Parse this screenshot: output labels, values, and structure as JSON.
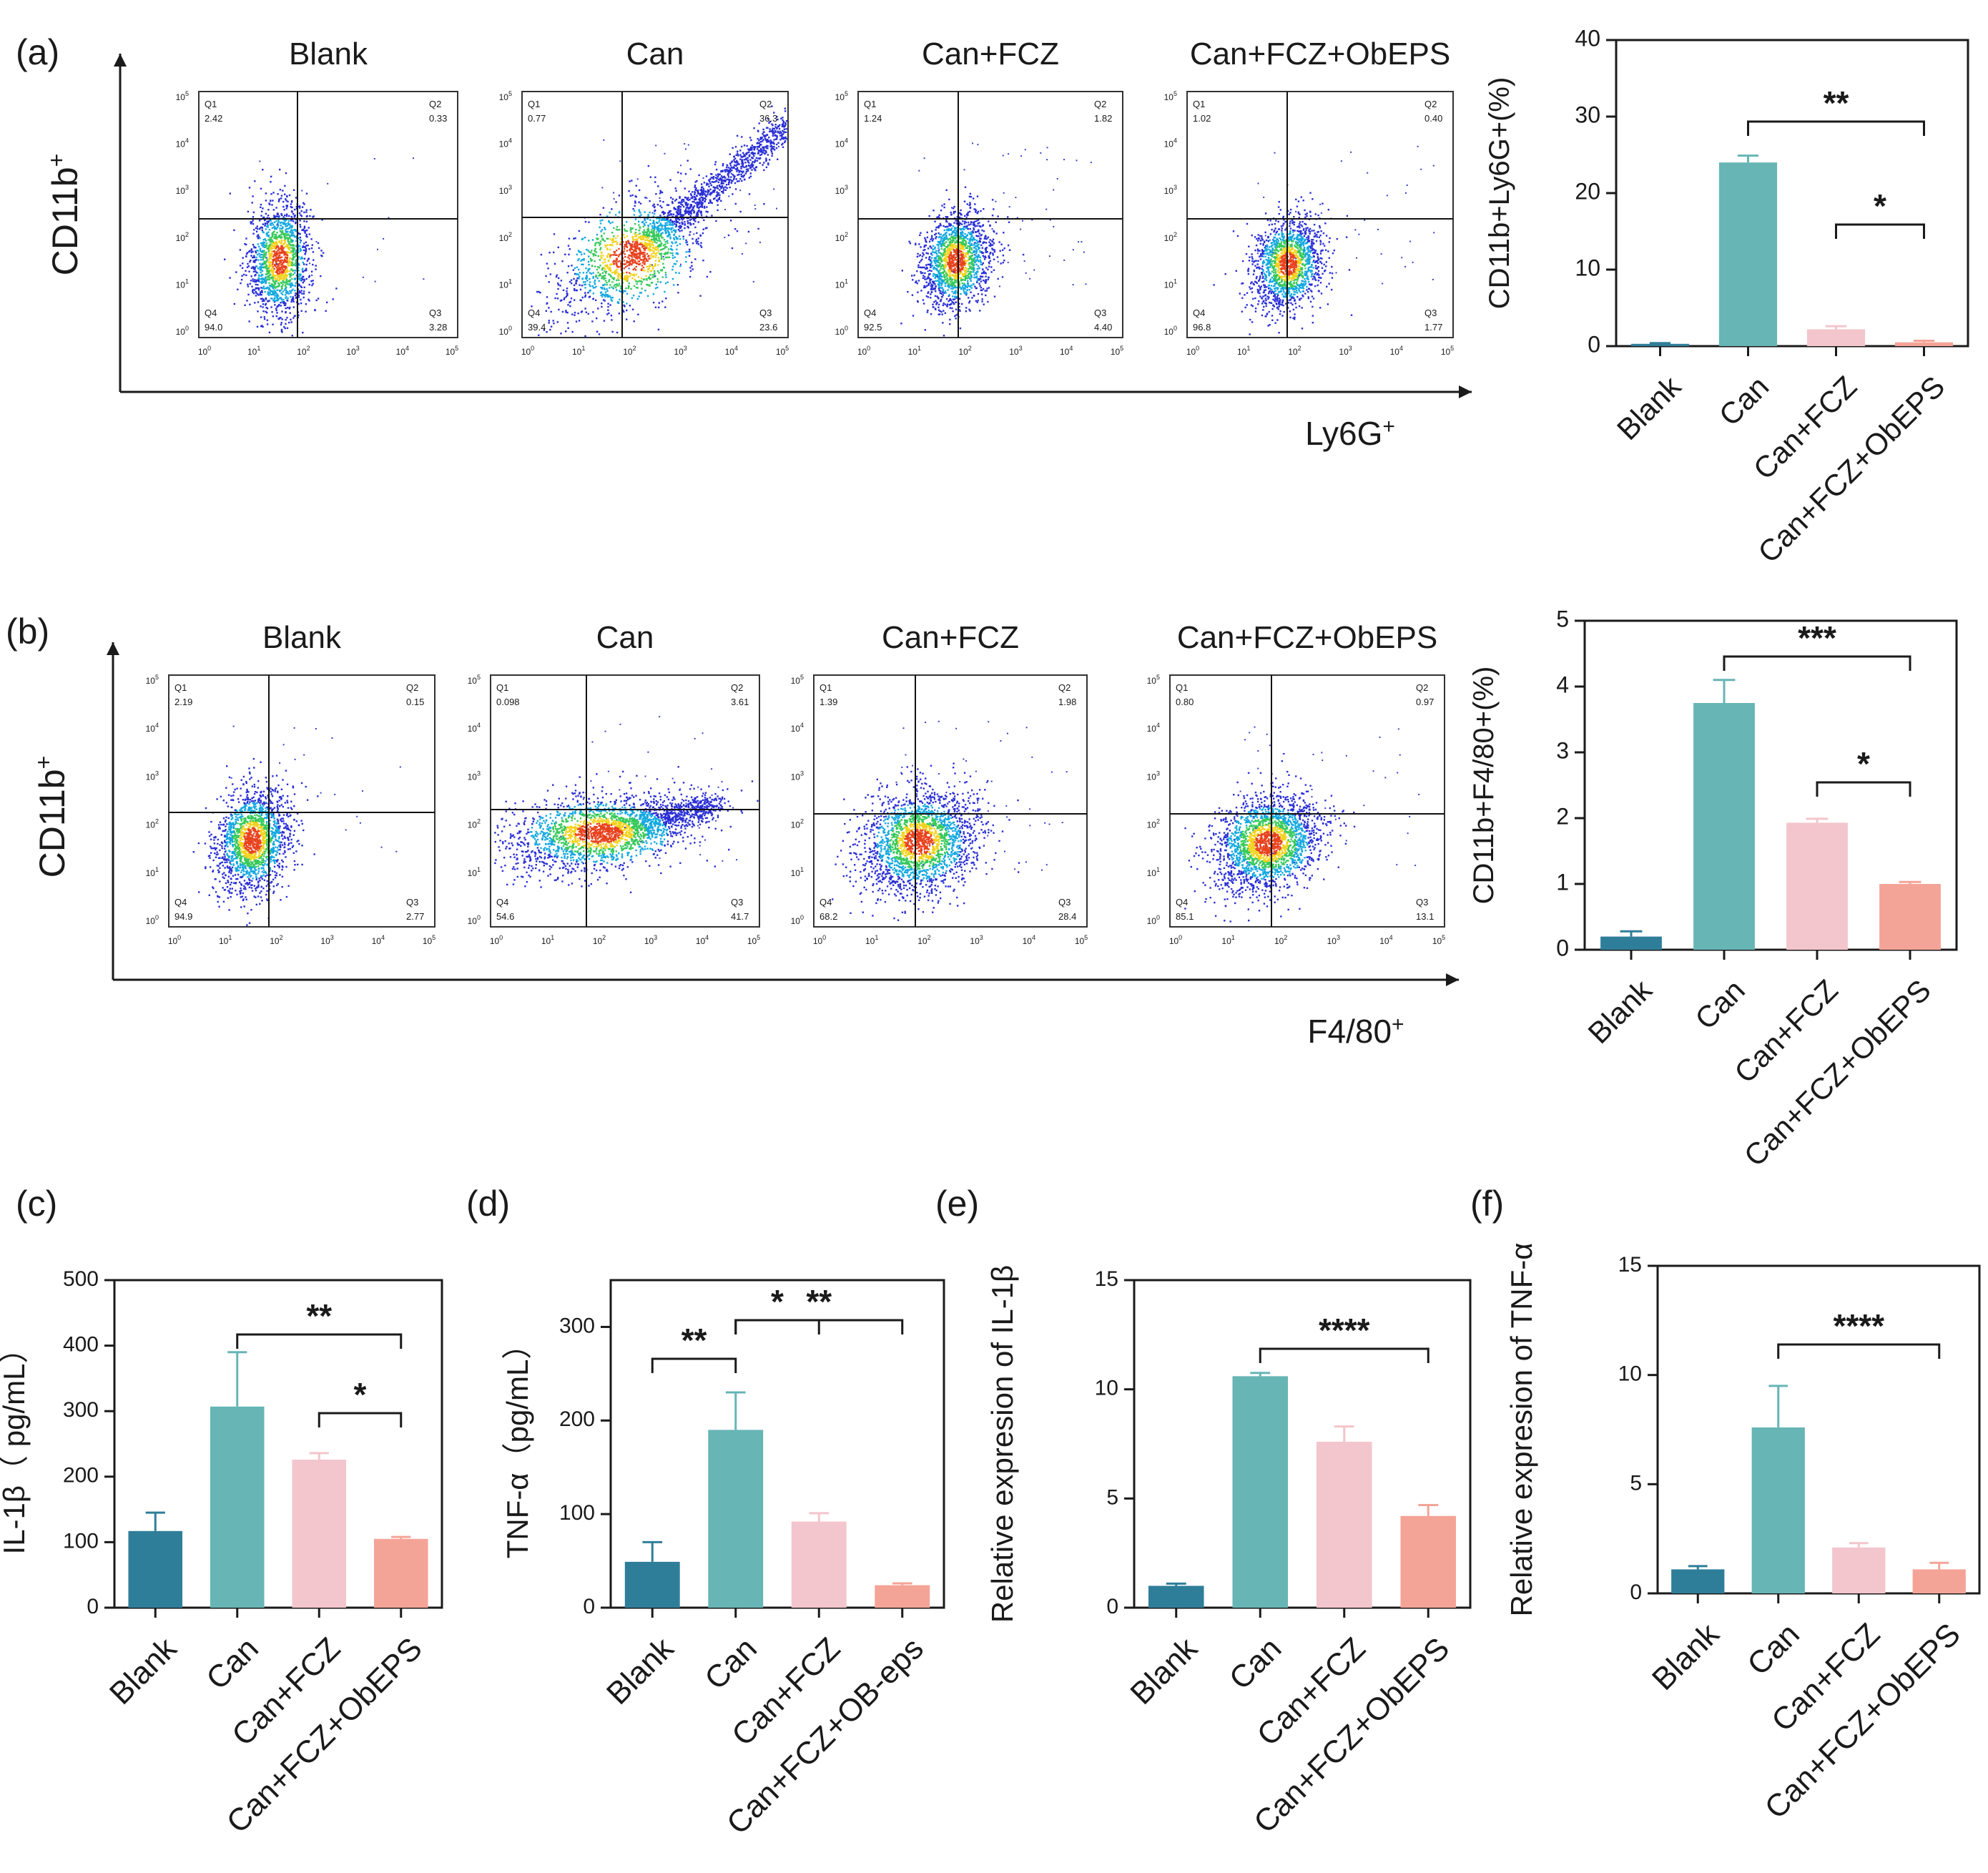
{
  "figure": {
    "panel_a": {
      "letter": "(a)",
      "y_marker": "CD11b",
      "y_marker_sup": "+",
      "x_marker": "Ly6G",
      "x_marker_sup": "+",
      "flow_plots": [
        {
          "group": "Blank",
          "q1": "2.42",
          "q2": "0.33",
          "q3": "3.28",
          "q4": "94.0"
        },
        {
          "group": "Can",
          "q1": "0.77",
          "q2": "36.3",
          "q3": "23.6",
          "q4": "39.4"
        },
        {
          "group": "Can+FCZ",
          "q1": "1.24",
          "q2": "1.82",
          "q3": "4.40",
          "q4": "92.5"
        },
        {
          "group": "Can+FCZ+ObEPS",
          "q1": "1.02",
          "q2": "0.40",
          "q3": "1.77",
          "q4": "96.8"
        }
      ]
    },
    "panel_b": {
      "letter": "(b)",
      "y_marker": "CD11b",
      "y_marker_sup": "+",
      "x_marker": "F4/80",
      "x_marker_sup": "+",
      "flow_plots": [
        {
          "group": "Blank",
          "q1": "2.19",
          "q2": "0.15",
          "q3": "2.77",
          "q4": "94.9"
        },
        {
          "group": "Can",
          "q1": "0.098",
          "q2": "3.61",
          "q3": "41.7",
          "q4": "54.6"
        },
        {
          "group": "Can+FCZ",
          "q1": "1.39",
          "q2": "1.98",
          "q3": "28.4",
          "q4": "68.2"
        },
        {
          "group": "Can+FCZ+ObEPS",
          "q1": "0.80",
          "q2": "0.97",
          "q3": "13.1",
          "q4": "85.1"
        }
      ]
    },
    "panel_c_letter": "(c)",
    "panel_d_letter": "(d)",
    "panel_e_letter": "(e)",
    "panel_f_letter": "(f)",
    "quadrant_names": [
      "Q1",
      "Q2",
      "Q3",
      "Q4"
    ],
    "log_ticks": [
      {
        "base": "10",
        "exp": "0"
      },
      {
        "base": "10",
        "exp": "1"
      },
      {
        "base": "10",
        "exp": "2"
      },
      {
        "base": "10",
        "exp": "3"
      },
      {
        "base": "10",
        "exp": "4"
      },
      {
        "base": "10",
        "exp": "5"
      }
    ]
  },
  "colors": {
    "blank": "#2f7e99",
    "can": "#67b5b5",
    "can_fcz": "#f3c5cc",
    "can_fcz_obeps": "#f4a497",
    "axis": "#1a1a1a",
    "flow_frame": "#333333",
    "flow_gate": "#111111"
  },
  "chart_data": [
    {
      "id": "a_bar",
      "type": "bar",
      "title": "",
      "xlabel": "",
      "ylabel": "CD11b+Ly6G+(%)",
      "categories": [
        "Blank",
        "Can",
        "Can+FCZ",
        "Can+FCZ+ObEPS"
      ],
      "values": [
        0.3,
        24.0,
        2.2,
        0.5
      ],
      "errors": [
        0.1,
        0.9,
        0.4,
        0.2
      ],
      "ylim": [
        0,
        40
      ],
      "yticks": [
        0,
        10,
        20,
        30,
        40
      ],
      "grid": false,
      "significance": [
        {
          "from": 1,
          "to": 3,
          "label": "**"
        },
        {
          "from": 2,
          "to": 3,
          "label": "*"
        }
      ]
    },
    {
      "id": "b_bar",
      "type": "bar",
      "title": "",
      "xlabel": "",
      "ylabel": "CD11b+F4/80+(%)",
      "categories": [
        "Blank",
        "Can",
        "Can+FCZ",
        "Can+FCZ+ObEPS"
      ],
      "values": [
        0.2,
        3.75,
        1.93,
        1.0
      ],
      "errors": [
        0.08,
        0.35,
        0.06,
        0.03
      ],
      "ylim": [
        0,
        5
      ],
      "yticks": [
        0,
        1,
        2,
        3,
        4,
        5
      ],
      "grid": false,
      "significance": [
        {
          "from": 1,
          "to": 3,
          "label": "***"
        },
        {
          "from": 2,
          "to": 3,
          "label": "*"
        }
      ]
    },
    {
      "id": "c_bar",
      "type": "bar",
      "title": "",
      "xlabel": "",
      "ylabel": "IL-1β（ pg/mL）",
      "categories": [
        "Blank",
        "Can",
        "Can+FCZ",
        "Can+FCZ+ObEPS"
      ],
      "values": [
        117,
        307,
        226,
        105
      ],
      "errors": [
        28,
        83,
        10,
        3
      ],
      "ylim": [
        0,
        500
      ],
      "yticks": [
        0,
        100,
        200,
        300,
        400,
        500
      ],
      "grid": false,
      "significance": [
        {
          "from": 1,
          "to": 3,
          "label": "**"
        },
        {
          "from": 2,
          "to": 3,
          "label": "*"
        }
      ]
    },
    {
      "id": "d_bar",
      "type": "bar",
      "title": "",
      "xlabel": "",
      "ylabel": "TNF-α（pg/mL）",
      "categories": [
        "Blank",
        "Can",
        "Can+FCZ",
        "Can+FCZ+OB-eps"
      ],
      "values": [
        49,
        190,
        92,
        24
      ],
      "errors": [
        21,
        40,
        9,
        2
      ],
      "ylim": [
        0,
        350
      ],
      "yticks": [
        0,
        100,
        200,
        300
      ],
      "grid": false,
      "significance": [
        {
          "from": 0,
          "to": 1,
          "label": "**"
        },
        {
          "from": 1,
          "to": 2,
          "label": "*"
        },
        {
          "from": 1,
          "to": 3,
          "label": "**"
        }
      ]
    },
    {
      "id": "e_bar",
      "type": "bar",
      "title": "",
      "xlabel": "",
      "ylabel": "Relative expresion of IL-1β",
      "categories": [
        "Blank",
        "Can",
        "Can+FCZ",
        "Can+FCZ+ObEPS"
      ],
      "values": [
        1.0,
        10.6,
        7.6,
        4.2
      ],
      "errors": [
        0.1,
        0.15,
        0.7,
        0.5
      ],
      "ylim": [
        0,
        15
      ],
      "yticks": [
        0,
        5,
        10,
        15
      ],
      "grid": false,
      "significance": [
        {
          "from": 1,
          "to": 3,
          "label": "****"
        }
      ]
    },
    {
      "id": "f_bar",
      "type": "bar",
      "title": "",
      "xlabel": "",
      "ylabel": "Relative expresion of TNF-α",
      "categories": [
        "Blank",
        "Can",
        "Can+FCZ",
        "Can+FCZ+ObEPS"
      ],
      "values": [
        1.1,
        7.6,
        2.1,
        1.1
      ],
      "errors": [
        0.15,
        1.9,
        0.2,
        0.3
      ],
      "ylim": [
        0,
        15
      ],
      "yticks": [
        0,
        5,
        10,
        15
      ],
      "grid": false,
      "significance": [
        {
          "from": 1,
          "to": 3,
          "label": "****"
        }
      ]
    }
  ]
}
